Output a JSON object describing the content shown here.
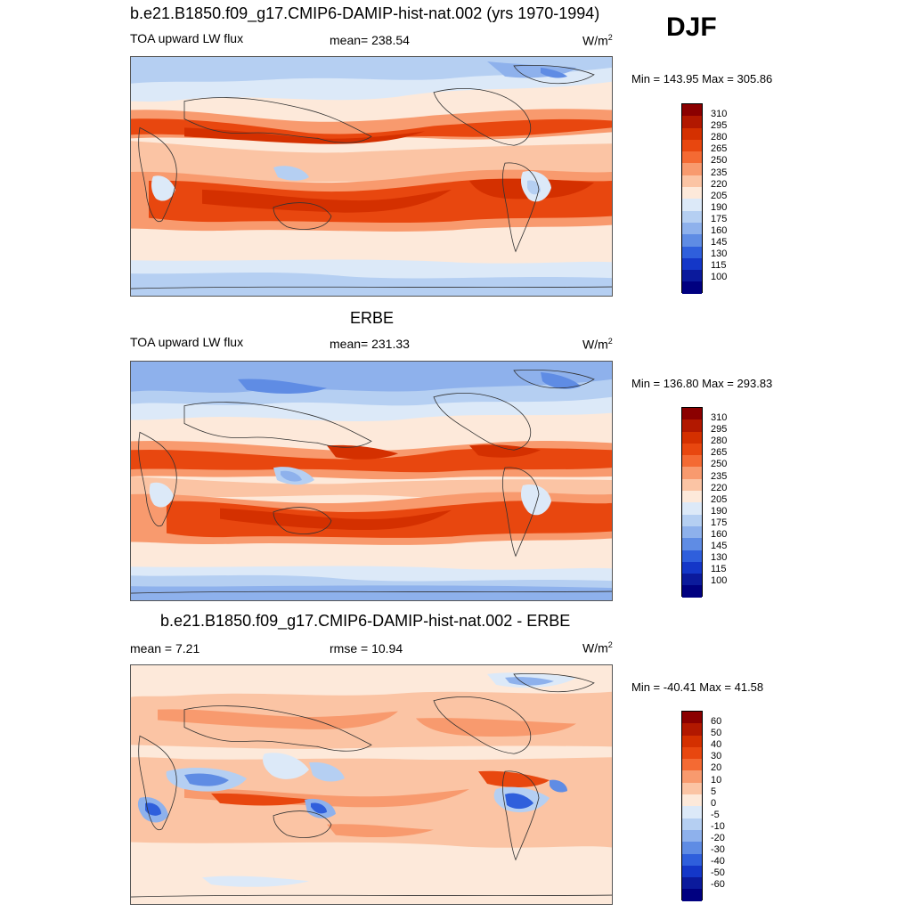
{
  "header": {
    "season": "DJF"
  },
  "panels": [
    {
      "title": "b.e21.B1850.f09_g17.CMIP6-DAMIP-hist-nat.002 (yrs 1970-1994)",
      "left_label": "TOA upward LW flux",
      "center_label": "mean= 238.54",
      "units": "W/m",
      "units_sup": "2",
      "minmax": "Min = 143.95 Max = 305.86",
      "colorbar_levels": [
        "310",
        "295",
        "280",
        "265",
        "250",
        "235",
        "220",
        "205",
        "190",
        "175",
        "160",
        "145",
        "130",
        "115",
        "100"
      ]
    },
    {
      "title": "ERBE",
      "left_label": "TOA upward LW flux",
      "center_label": "mean= 231.33",
      "units": "W/m",
      "units_sup": "2",
      "minmax": "Min = 136.80 Max = 293.83",
      "colorbar_levels": [
        "310",
        "295",
        "280",
        "265",
        "250",
        "235",
        "220",
        "205",
        "190",
        "175",
        "160",
        "145",
        "130",
        "115",
        "100"
      ]
    },
    {
      "title": "b.e21.B1850.f09_g17.CMIP6-DAMIP-hist-nat.002 - ERBE",
      "left_label": "mean =   7.21",
      "center_label": "rmse =  10.94",
      "units": "W/m",
      "units_sup": "2",
      "minmax": "Min = -40.41 Max =  41.58",
      "colorbar_levels": [
        "60",
        "50",
        "40",
        "30",
        "20",
        "10",
        "5",
        "0",
        "-5",
        "-10",
        "-20",
        "-30",
        "-40",
        "-50",
        "-60"
      ]
    }
  ],
  "colors": {
    "colorbar": [
      "#8b0000",
      "#b21800",
      "#d43000",
      "#e8470f",
      "#f46a33",
      "#f89a6e",
      "#fbc4a4",
      "#fde9da",
      "#dce9f8",
      "#b5cff2",
      "#8eb1ec",
      "#5f8ce4",
      "#2f5fdc",
      "#1437c8",
      "#0b1a9c",
      "#000080"
    ]
  }
}
